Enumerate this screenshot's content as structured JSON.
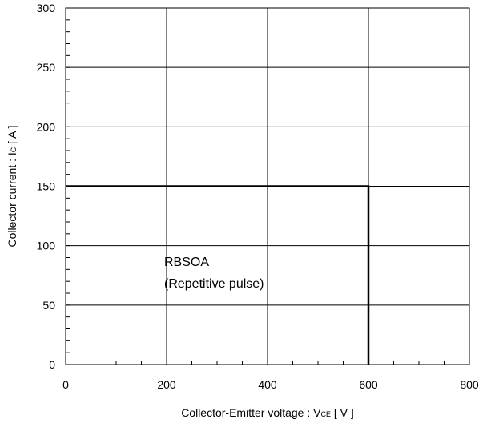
{
  "chart_data": {
    "type": "line",
    "title": "",
    "xlabel": {
      "main": "Collector-Emitter voltage  :  V",
      "sub": "CE",
      "unit": " [ V ]"
    },
    "ylabel": {
      "main": "Collector current : I",
      "sub": "C",
      "unit": " [ A ]"
    },
    "xlim": [
      0,
      800
    ],
    "ylim": [
      0,
      300
    ],
    "x_ticks": [
      0,
      200,
      400,
      600,
      800
    ],
    "y_ticks": [
      0,
      50,
      100,
      150,
      200,
      250,
      300
    ],
    "x_minor_step": 50,
    "y_minor_step": 10,
    "grid": true,
    "series": [
      {
        "name": "",
        "color": "#000000",
        "points": [
          [
            0,
            150
          ],
          [
            600,
            150
          ],
          [
            600,
            0
          ]
        ]
      }
    ],
    "annotations": [
      {
        "line1": "RBSOA",
        "line2": "(Repetitive pulse)"
      }
    ]
  }
}
